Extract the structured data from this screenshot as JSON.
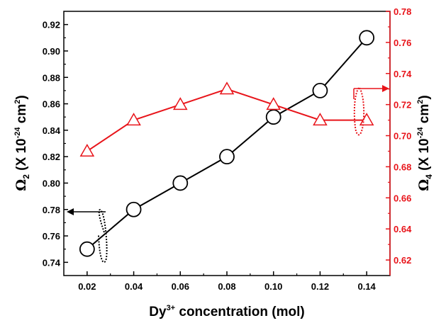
{
  "chart_data": {
    "type": "line",
    "x": [
      0.02,
      0.04,
      0.06,
      0.08,
      0.1,
      0.12,
      0.14
    ],
    "x_tick_labels": [
      "0.02",
      "0.04",
      "0.06",
      "0.08",
      "0.10",
      "0.12",
      "0.14"
    ],
    "xlim": [
      0.01,
      0.15
    ],
    "xlabel": {
      "base": "Dy",
      "sup": "3+",
      "rest": " concentration (mol)"
    },
    "left_axis": {
      "label": {
        "symbol": "Ω",
        "sub": "2",
        "text": " (X 10",
        "exp": "-24",
        "unit": " cm",
        "unit_exp": "2",
        "close": ")"
      },
      "ylim": [
        0.73,
        0.93
      ],
      "ticks": [
        0.74,
        0.76,
        0.78,
        0.8,
        0.82,
        0.84,
        0.86,
        0.88,
        0.9,
        0.92
      ],
      "tick_labels": [
        "0.74",
        "0.76",
        "0.78",
        "0.80",
        "0.82",
        "0.84",
        "0.86",
        "0.88",
        "0.90",
        "0.92"
      ],
      "color": "#000000"
    },
    "right_axis": {
      "label": {
        "symbol": "Ω",
        "sub": "4",
        "text": " (X 10",
        "exp": "-24",
        "unit": " cm",
        "unit_exp": "2",
        "close": ")"
      },
      "ylim": [
        0.61,
        0.78
      ],
      "ticks": [
        0.62,
        0.64,
        0.66,
        0.68,
        0.7,
        0.72,
        0.74,
        0.76,
        0.78
      ],
      "tick_labels": [
        "0.62",
        "0.64",
        "0.66",
        "0.68",
        "0.70",
        "0.72",
        "0.74",
        "0.76",
        "0.78"
      ],
      "color": "#e8141a"
    },
    "series": [
      {
        "axis": "left",
        "marker": "circle",
        "color": "#000000",
        "values": [
          0.75,
          0.78,
          0.8,
          0.82,
          0.85,
          0.87,
          0.91
        ]
      },
      {
        "axis": "right",
        "marker": "triangle",
        "color": "#e8141a",
        "values": [
          0.69,
          0.71,
          0.72,
          0.73,
          0.72,
          0.71,
          0.71
        ]
      }
    ],
    "grid": false,
    "legend": "none"
  }
}
